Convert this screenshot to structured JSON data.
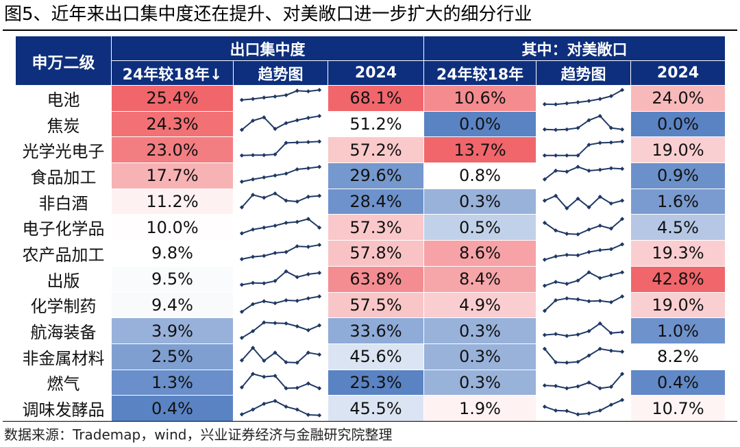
{
  "title": "图5、近年来出口集中度还在提升、对美敞口进一步扩大的细分行业",
  "source": "数据来源：Trademap，wind，兴业证券经济与金融研究院整理",
  "colors": {
    "header_bg": "#0e2f7d",
    "high": "#f0666b",
    "mid": "#ffffff",
    "low": "#5a83c4",
    "spark": "#1f3864"
  },
  "chart_data": {
    "type": "table",
    "header": {
      "industry": "申万二级",
      "group1": "出口集中度",
      "group2": "其中：对美敞口",
      "sub": [
        "24年较18年↓",
        "趋势图",
        "2024",
        "24年较18年",
        "趋势图",
        "2024"
      ]
    },
    "rows": [
      {
        "name": "电池",
        "c_delta": "25.4%",
        "c_2024": "68.1%",
        "u_delta": "10.6%",
        "u_2024": "24.0%",
        "c_trend": [
          40,
          45,
          52,
          58,
          65,
          88,
          85,
          92
        ],
        "u_trend": [
          18,
          17,
          22,
          28,
          35,
          45,
          60,
          92
        ]
      },
      {
        "name": "焦炭",
        "c_delta": "24.3%",
        "c_2024": "51.2%",
        "u_delta": "0.0%",
        "u_2024": "0.0%",
        "c_trend": [
          20,
          68,
          85,
          25,
          55,
          70,
          82,
          92
        ],
        "u_trend": [
          22,
          20,
          22,
          30,
          70,
          92,
          30,
          22
        ]
      },
      {
        "name": "光学光电子",
        "c_delta": "23.0%",
        "c_2024": "57.2%",
        "u_delta": "13.7%",
        "u_2024": "19.0%",
        "c_trend": [
          22,
          24,
          24,
          28,
          88,
          90,
          92,
          95
        ],
        "u_trend": [
          22,
          22,
          22,
          22,
          78,
          88,
          90,
          95
        ]
      },
      {
        "name": "食品加工",
        "c_delta": "17.7%",
        "c_2024": "29.6%",
        "u_delta": "0.8%",
        "u_2024": "0.9%",
        "c_trend": [
          18,
          30,
          40,
          50,
          60,
          82,
          88,
          95
        ],
        "u_trend": [
          30,
          75,
          70,
          95,
          75,
          80,
          88,
          85
        ]
      },
      {
        "name": "非白酒",
        "c_delta": "11.2%",
        "c_2024": "28.4%",
        "u_delta": "0.3%",
        "u_2024": "1.6%",
        "c_trend": [
          20,
          85,
          70,
          92,
          55,
          50,
          75,
          80
        ],
        "u_trend": [
          55,
          80,
          15,
          65,
          20,
          75,
          40,
          55
        ]
      },
      {
        "name": "电子化学品",
        "c_delta": "10.0%",
        "c_2024": "57.3%",
        "u_delta": "0.5%",
        "u_2024": "4.5%",
        "c_trend": [
          20,
          40,
          50,
          60,
          75,
          80,
          95,
          50
        ],
        "u_trend": [
          75,
          35,
          18,
          15,
          40,
          60,
          45,
          95
        ]
      },
      {
        "name": "农产品加工",
        "c_delta": "9.8%",
        "c_2024": "57.8%",
        "u_delta": "8.6%",
        "u_2024": "19.3%",
        "c_trend": [
          18,
          30,
          35,
          50,
          55,
          85,
          82,
          92
        ],
        "u_trend": [
          15,
          32,
          40,
          38,
          55,
          65,
          70,
          95
        ]
      },
      {
        "name": "出版",
        "c_delta": "9.5%",
        "c_2024": "63.8%",
        "u_delta": "8.4%",
        "u_2024": "42.8%",
        "c_trend": [
          20,
          30,
          28,
          40,
          90,
          60,
          75,
          82
        ],
        "u_trend": [
          15,
          35,
          25,
          42,
          85,
          55,
          70,
          85
        ]
      },
      {
        "name": "化学制药",
        "c_delta": "9.4%",
        "c_2024": "57.5%",
        "u_delta": "4.9%",
        "u_2024": "19.0%",
        "c_trend": [
          15,
          55,
          70,
          60,
          75,
          72,
          85,
          95
        ],
        "u_trend": [
          20,
          75,
          85,
          80,
          70,
          72,
          65,
          95
        ]
      },
      {
        "name": "航海装备",
        "c_delta": "3.9%",
        "c_2024": "33.6%",
        "u_delta": "0.3%",
        "u_2024": "1.0%",
        "c_trend": [
          15,
          50,
          95,
          92,
          90,
          75,
          55,
          80
        ],
        "u_trend": [
          30,
          35,
          25,
          32,
          50,
          90,
          40,
          45
        ]
      },
      {
        "name": "非金属材料",
        "c_delta": "2.5%",
        "c_2024": "45.6%",
        "u_delta": "0.3%",
        "u_2024": "8.2%",
        "c_trend": [
          30,
          95,
          28,
          70,
          20,
          18,
          70,
          60
        ],
        "u_trend": [
          90,
          20,
          18,
          22,
          55,
          90,
          80,
          75
        ]
      },
      {
        "name": "燃气",
        "c_delta": "1.3%",
        "c_2024": "25.3%",
        "u_delta": "0.3%",
        "u_2024": "0.4%",
        "c_trend": [
          25,
          95,
          80,
          85,
          20,
          22,
          45,
          20
        ],
        "u_trend": [
          35,
          32,
          20,
          30,
          50,
          20,
          28,
          95
        ]
      },
      {
        "name": "调味发酵品",
        "c_delta": "0.4%",
        "c_2024": "45.5%",
        "u_delta": "1.9%",
        "u_2024": "10.7%",
        "c_trend": [
          20,
          45,
          75,
          90,
          60,
          45,
          18,
          15
        ],
        "u_trend": [
          60,
          40,
          38,
          20,
          25,
          40,
          70,
          95
        ]
      }
    ]
  }
}
